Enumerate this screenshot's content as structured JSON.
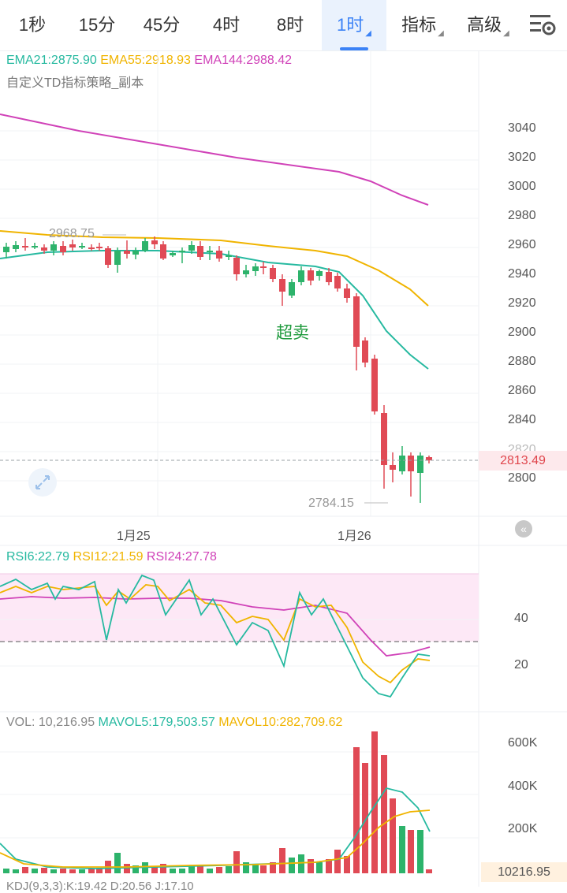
{
  "tabs": [
    {
      "label": "1秒",
      "active": false,
      "dropdown": false
    },
    {
      "label": "15分",
      "active": false,
      "dropdown": false
    },
    {
      "label": "45分",
      "active": false,
      "dropdown": false
    },
    {
      "label": "4时",
      "active": false,
      "dropdown": false
    },
    {
      "label": "8时",
      "active": false,
      "dropdown": false
    },
    {
      "label": "1时",
      "active": true,
      "dropdown": true
    },
    {
      "label": "指标",
      "active": false,
      "dropdown": true
    },
    {
      "label": "高级",
      "active": false,
      "dropdown": true
    }
  ],
  "settings_icon": "chart-settings-icon",
  "main_chart": {
    "ema_legend": [
      {
        "text": "EMA21:2875.90",
        "color": "#26b9a0"
      },
      {
        "text": "EMA55:2918.93",
        "color": "#f0b400"
      },
      {
        "text": "EMA144:2988.42",
        "color": "#d042b8"
      }
    ],
    "strategy_label": "自定义TD指标策略_副本",
    "annotation": "超卖",
    "high_label": "2968.75",
    "low_label": "2784.15",
    "current_price": "2813.49",
    "y_ticks": [
      "3040",
      "3020",
      "3000",
      "2980",
      "2960",
      "2940",
      "2920",
      "2900",
      "2880",
      "2860",
      "2840",
      "2820",
      "2800"
    ],
    "x_ticks": [
      "1月25",
      "1月26"
    ],
    "expand_icon": "expand-arrows-icon",
    "scroll_icon": "scroll-to-latest-icon"
  },
  "rsi": {
    "legend": [
      {
        "text": "RSI6:22.79",
        "color": "#26b9a0"
      },
      {
        "text": "RSI12:21.59",
        "color": "#f0b400"
      },
      {
        "text": "RSI24:27.78",
        "color": "#d042b8"
      }
    ],
    "y_ticks": [
      "40",
      "20"
    ]
  },
  "vol": {
    "legend": [
      {
        "text": "VOL: 10,216.95",
        "color": "#888888"
      },
      {
        "text": "MAVOL5:179,503.57",
        "color": "#26b9a0"
      },
      {
        "text": "MAVOL10:282,709.62",
        "color": "#f0b400"
      }
    ],
    "y_ticks": [
      "600K",
      "400K",
      "200K"
    ],
    "current": "10216.95"
  },
  "kdj_label": "KDJ(9,3,3):K:19.42 D:20.56 J:17.10",
  "colors": {
    "up": "#2db36b",
    "down": "#e04a55",
    "accent": "#3b82f6",
    "ema21": "#26b9a0",
    "ema55": "#f0b400",
    "ema144": "#d042b8"
  }
}
